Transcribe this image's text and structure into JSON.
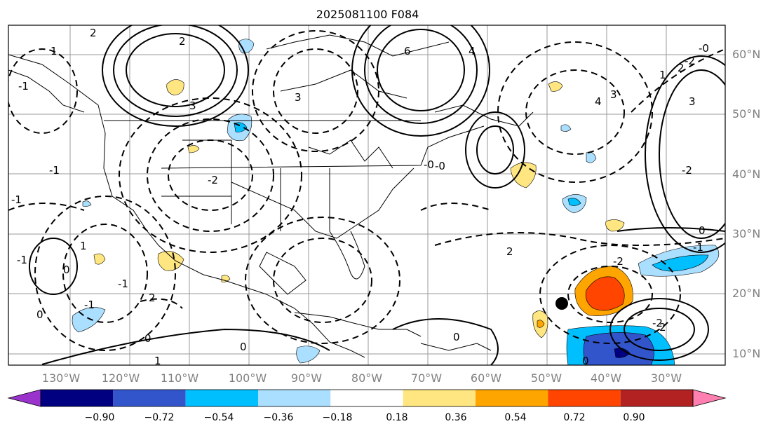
{
  "title": "2025081100 F084",
  "longitude_labels": [
    "130°W",
    "120°W",
    "110°W",
    "100°W",
    "90°W",
    "80°W",
    "70°W",
    "60°W",
    "50°W",
    "40°W",
    "30°W"
  ],
  "latitude_labels": [
    "60°N",
    "50°N",
    "40°N",
    "30°N",
    "20°N",
    "10°N"
  ],
  "colorbar": {
    "ticks": [
      "−0.90",
      "−0.72",
      "−0.54",
      "−0.36",
      "−0.18",
      "0.18",
      "0.36",
      "0.54",
      "0.72",
      "0.90"
    ],
    "colors": [
      "#9933cc",
      "#000080",
      "#3355cc",
      "#00bfff",
      "#aadfff",
      "#ffffff",
      "#ffe680",
      "#ffa500",
      "#ff4500",
      "#b22222",
      "#ff80b0"
    ]
  },
  "contour_labels": [
    "2",
    "1",
    "2",
    "3",
    "3",
    "6",
    "4",
    "3",
    "4",
    "1",
    "2",
    "3",
    "-0",
    "-2",
    "-1",
    "-1",
    "2",
    "-2",
    "-0",
    "0",
    "0",
    "-1",
    "1",
    "-1",
    "2",
    "-1",
    "1",
    "0",
    "-2",
    "-1",
    "-0",
    "-2",
    "0",
    "-2",
    "2",
    "-1",
    "0",
    "0",
    "0"
  ],
  "marker": "tropical-cyclone-position"
}
